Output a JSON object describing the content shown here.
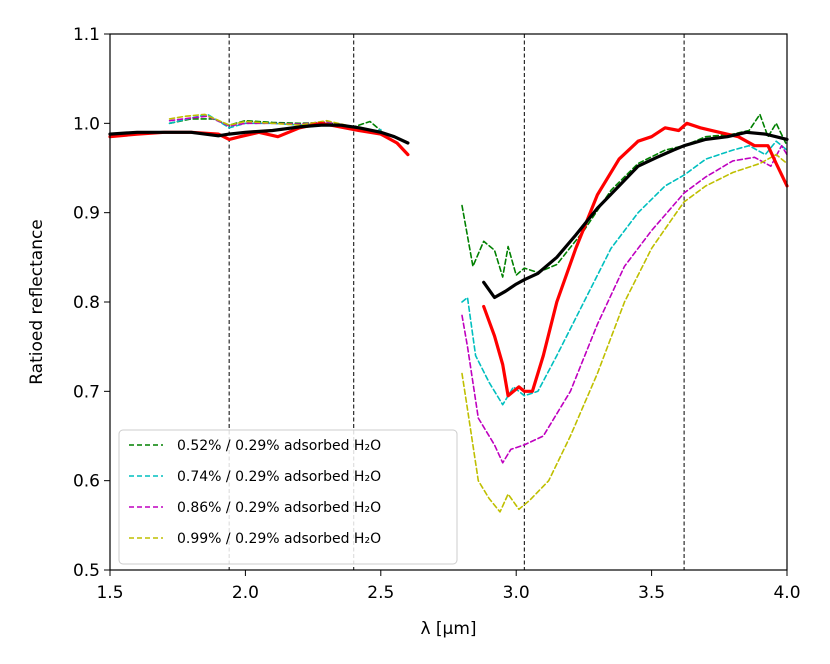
{
  "chart_data": {
    "type": "line",
    "xlabel": "λ [μm]",
    "ylabel": "Ratioed reflectance",
    "xlim": [
      1.5,
      4.0
    ],
    "ylim": [
      0.5,
      1.1
    ],
    "xticks": [
      "1.5",
      "2.0",
      "2.5",
      "3.0",
      "3.5",
      "4.0"
    ],
    "yticks": [
      "0.5",
      "0.6",
      "0.7",
      "0.8",
      "0.9",
      "1.0",
      "1.1"
    ],
    "grid": false,
    "legend_position": "lower-left",
    "vlines": [
      1.94,
      2.4,
      3.03,
      3.62
    ],
    "series": [
      {
        "name": "0.52% / 0.29% adsorbed H₂O",
        "color": "#008000",
        "dash": true,
        "in_legend": true,
        "segments": [
          [
            [
              1.72,
              1.0
            ],
            [
              1.8,
              1.005
            ],
            [
              1.88,
              1.005
            ],
            [
              1.94,
              0.998
            ],
            [
              2.0,
              1.003
            ],
            [
              2.1,
              1.001
            ],
            [
              2.2,
              1.0
            ],
            [
              2.3,
              1.001
            ],
            [
              2.4,
              0.996
            ],
            [
              2.46,
              1.002
            ],
            [
              2.5,
              0.992
            ]
          ],
          [
            [
              2.8,
              0.908
            ],
            [
              2.84,
              0.84
            ],
            [
              2.88,
              0.868
            ],
            [
              2.92,
              0.858
            ],
            [
              2.95,
              0.828
            ],
            [
              2.97,
              0.862
            ],
            [
              3.0,
              0.83
            ],
            [
              3.03,
              0.838
            ],
            [
              3.08,
              0.833
            ],
            [
              3.15,
              0.842
            ],
            [
              3.25,
              0.88
            ],
            [
              3.35,
              0.925
            ],
            [
              3.45,
              0.955
            ],
            [
              3.55,
              0.97
            ],
            [
              3.62,
              0.975
            ],
            [
              3.7,
              0.985
            ],
            [
              3.8,
              0.988
            ],
            [
              3.86,
              0.992
            ],
            [
              3.9,
              1.01
            ],
            [
              3.93,
              0.985
            ],
            [
              3.96,
              1.0
            ],
            [
              4.0,
              0.975
            ]
          ]
        ]
      },
      {
        "name": "0.74% / 0.29% adsorbed H₂O",
        "color": "#00bfbf",
        "dash": true,
        "in_legend": true,
        "segments": [
          [
            [
              1.72,
              1.0
            ],
            [
              1.8,
              1.006
            ],
            [
              1.86,
              1.01
            ],
            [
              1.94,
              0.995
            ],
            [
              2.0,
              1.0
            ],
            [
              2.1,
              1.0
            ],
            [
              2.2,
              0.998
            ],
            [
              2.3,
              1.0
            ],
            [
              2.4,
              0.995
            ],
            [
              2.46,
              0.99
            ],
            [
              2.5,
              0.993
            ]
          ],
          [
            [
              2.8,
              0.8
            ],
            [
              2.82,
              0.805
            ],
            [
              2.85,
              0.74
            ],
            [
              2.9,
              0.71
            ],
            [
              2.95,
              0.685
            ],
            [
              2.99,
              0.705
            ],
            [
              3.03,
              0.695
            ],
            [
              3.08,
              0.7
            ],
            [
              3.15,
              0.74
            ],
            [
              3.25,
              0.8
            ],
            [
              3.35,
              0.86
            ],
            [
              3.45,
              0.9
            ],
            [
              3.55,
              0.93
            ],
            [
              3.62,
              0.942
            ],
            [
              3.7,
              0.96
            ],
            [
              3.8,
              0.97
            ],
            [
              3.86,
              0.975
            ],
            [
              3.92,
              0.965
            ],
            [
              3.96,
              0.98
            ],
            [
              4.0,
              0.97
            ]
          ]
        ]
      },
      {
        "name": "0.86% / 0.29% adsorbed H₂O",
        "color": "#bf00bf",
        "dash": true,
        "in_legend": true,
        "segments": [
          [
            [
              1.72,
              1.003
            ],
            [
              1.8,
              1.006
            ],
            [
              1.86,
              1.008
            ],
            [
              1.94,
              0.997
            ],
            [
              2.0,
              1.0
            ],
            [
              2.1,
              1.0
            ],
            [
              2.2,
              0.999
            ],
            [
              2.3,
              1.002
            ],
            [
              2.4,
              0.994
            ],
            [
              2.46,
              0.992
            ],
            [
              2.5,
              0.99
            ]
          ],
          [
            [
              2.8,
              0.785
            ],
            [
              2.82,
              0.75
            ],
            [
              2.86,
              0.67
            ],
            [
              2.92,
              0.64
            ],
            [
              2.95,
              0.62
            ],
            [
              2.98,
              0.635
            ],
            [
              3.03,
              0.64
            ],
            [
              3.1,
              0.65
            ],
            [
              3.2,
              0.7
            ],
            [
              3.3,
              0.775
            ],
            [
              3.4,
              0.84
            ],
            [
              3.5,
              0.88
            ],
            [
              3.58,
              0.908
            ],
            [
              3.62,
              0.922
            ],
            [
              3.7,
              0.94
            ],
            [
              3.8,
              0.958
            ],
            [
              3.88,
              0.962
            ],
            [
              3.94,
              0.952
            ],
            [
              3.98,
              0.975
            ],
            [
              4.0,
              0.965
            ]
          ]
        ]
      },
      {
        "name": "0.99% / 0.29% adsorbed H₂O",
        "color": "#bfbf00",
        "dash": true,
        "in_legend": true,
        "segments": [
          [
            [
              1.72,
              1.005
            ],
            [
              1.78,
              1.008
            ],
            [
              1.85,
              1.01
            ],
            [
              1.94,
              0.998
            ],
            [
              2.0,
              1.002
            ],
            [
              2.1,
              1.0
            ],
            [
              2.2,
              0.998
            ],
            [
              2.3,
              1.003
            ],
            [
              2.4,
              0.996
            ],
            [
              2.46,
              0.993
            ],
            [
              2.5,
              0.99
            ]
          ],
          [
            [
              2.8,
              0.72
            ],
            [
              2.82,
              0.68
            ],
            [
              2.86,
              0.6
            ],
            [
              2.9,
              0.58
            ],
            [
              2.94,
              0.565
            ],
            [
              2.97,
              0.585
            ],
            [
              3.01,
              0.568
            ],
            [
              3.05,
              0.578
            ],
            [
              3.12,
              0.6
            ],
            [
              3.2,
              0.65
            ],
            [
              3.3,
              0.72
            ],
            [
              3.4,
              0.8
            ],
            [
              3.5,
              0.86
            ],
            [
              3.58,
              0.895
            ],
            [
              3.62,
              0.912
            ],
            [
              3.7,
              0.93
            ],
            [
              3.8,
              0.945
            ],
            [
              3.9,
              0.955
            ],
            [
              3.96,
              0.965
            ],
            [
              4.0,
              0.955
            ]
          ]
        ]
      },
      {
        "name": "",
        "color": "#ff0000",
        "dash": false,
        "in_legend": false,
        "width": 3.2,
        "segments": [
          [
            [
              1.5,
              0.985
            ],
            [
              1.6,
              0.988
            ],
            [
              1.7,
              0.99
            ],
            [
              1.8,
              0.99
            ],
            [
              1.9,
              0.988
            ],
            [
              1.94,
              0.982
            ],
            [
              1.98,
              0.985
            ],
            [
              2.05,
              0.99
            ],
            [
              2.12,
              0.985
            ],
            [
              2.2,
              0.995
            ],
            [
              2.28,
              1.0
            ],
            [
              2.35,
              0.996
            ],
            [
              2.42,
              0.992
            ],
            [
              2.5,
              0.988
            ],
            [
              2.56,
              0.978
            ],
            [
              2.6,
              0.965
            ]
          ],
          [
            [
              2.88,
              0.795
            ],
            [
              2.92,
              0.762
            ],
            [
              2.95,
              0.73
            ],
            [
              2.97,
              0.695
            ],
            [
              2.99,
              0.7
            ],
            [
              3.01,
              0.705
            ],
            [
              3.03,
              0.7
            ],
            [
              3.06,
              0.7
            ],
            [
              3.1,
              0.74
            ],
            [
              3.15,
              0.8
            ],
            [
              3.22,
              0.86
            ],
            [
              3.3,
              0.92
            ],
            [
              3.38,
              0.96
            ],
            [
              3.45,
              0.98
            ],
            [
              3.5,
              0.985
            ],
            [
              3.55,
              0.995
            ],
            [
              3.6,
              0.992
            ],
            [
              3.63,
              1.0
            ],
            [
              3.68,
              0.995
            ],
            [
              3.75,
              0.99
            ],
            [
              3.82,
              0.985
            ],
            [
              3.88,
              0.975
            ],
            [
              3.93,
              0.975
            ],
            [
              3.96,
              0.955
            ],
            [
              4.0,
              0.93
            ]
          ]
        ]
      },
      {
        "name": "",
        "color": "#000000",
        "dash": false,
        "in_legend": false,
        "width": 3.2,
        "segments": [
          [
            [
              1.5,
              0.988
            ],
            [
              1.6,
              0.99
            ],
            [
              1.7,
              0.99
            ],
            [
              1.8,
              0.99
            ],
            [
              1.9,
              0.986
            ],
            [
              1.94,
              0.988
            ],
            [
              2.0,
              0.99
            ],
            [
              2.1,
              0.992
            ],
            [
              2.2,
              0.996
            ],
            [
              2.28,
              0.998
            ],
            [
              2.35,
              0.998
            ],
            [
              2.42,
              0.995
            ],
            [
              2.5,
              0.99
            ],
            [
              2.55,
              0.985
            ],
            [
              2.6,
              0.978
            ]
          ],
          [
            [
              2.88,
              0.822
            ],
            [
              2.92,
              0.805
            ],
            [
              2.96,
              0.812
            ],
            [
              3.0,
              0.82
            ],
            [
              3.03,
              0.825
            ],
            [
              3.08,
              0.832
            ],
            [
              3.15,
              0.85
            ],
            [
              3.22,
              0.875
            ],
            [
              3.3,
              0.905
            ],
            [
              3.38,
              0.93
            ],
            [
              3.45,
              0.952
            ],
            [
              3.52,
              0.962
            ],
            [
              3.58,
              0.97
            ],
            [
              3.62,
              0.975
            ],
            [
              3.7,
              0.982
            ],
            [
              3.78,
              0.985
            ],
            [
              3.85,
              0.99
            ],
            [
              3.92,
              0.988
            ],
            [
              4.0,
              0.982
            ]
          ]
        ]
      }
    ]
  }
}
